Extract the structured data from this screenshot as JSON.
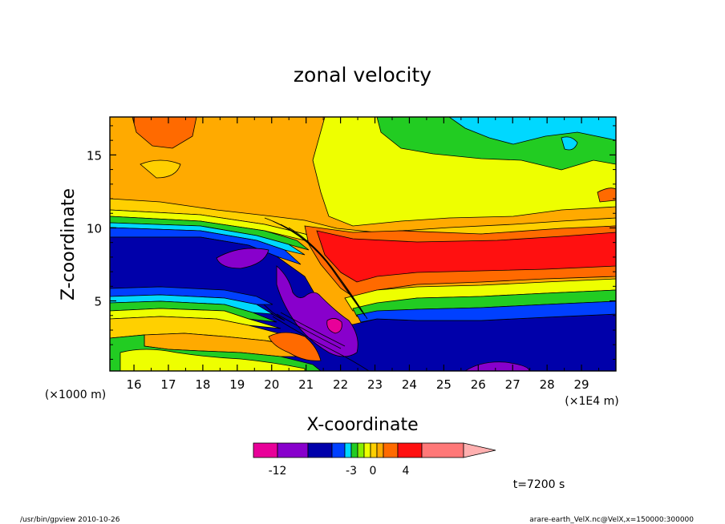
{
  "chart_data": {
    "type": "heatmap",
    "title": "zonal velocity",
    "xlabel": "X-coordinate",
    "ylabel": "Z-coordinate",
    "x_unit_label": "(×1E4 m)",
    "y_unit_label": "(×1000 m)",
    "xlim": [
      15.3,
      30.0
    ],
    "ylim": [
      0.2,
      17.6
    ],
    "x_ticks": [
      "16",
      "17",
      "18",
      "19",
      "20",
      "21",
      "22",
      "23",
      "24",
      "25",
      "26",
      "27",
      "28",
      "29"
    ],
    "y_ticks": [
      "5",
      "10",
      "15"
    ],
    "colorbar": {
      "tick_labels": [
        "-12",
        "-3",
        "0",
        "4"
      ],
      "colors": [
        "#e80099",
        "#8800cc",
        "#0000aa",
        "#0040ff",
        "#00d8ff",
        "#22cc22",
        "#88ee00",
        "#eeff00",
        "#ffd000",
        "#ffaa00",
        "#ff6a00",
        "#ff1010",
        "#ff7878",
        "#ffb0b0"
      ]
    },
    "time_label": "t=7200 s"
  },
  "footer": {
    "left": "/usr/bin/gpview   2010-10-26",
    "right": "arare-earth_VelX.nc@VelX,x=150000:300000"
  }
}
